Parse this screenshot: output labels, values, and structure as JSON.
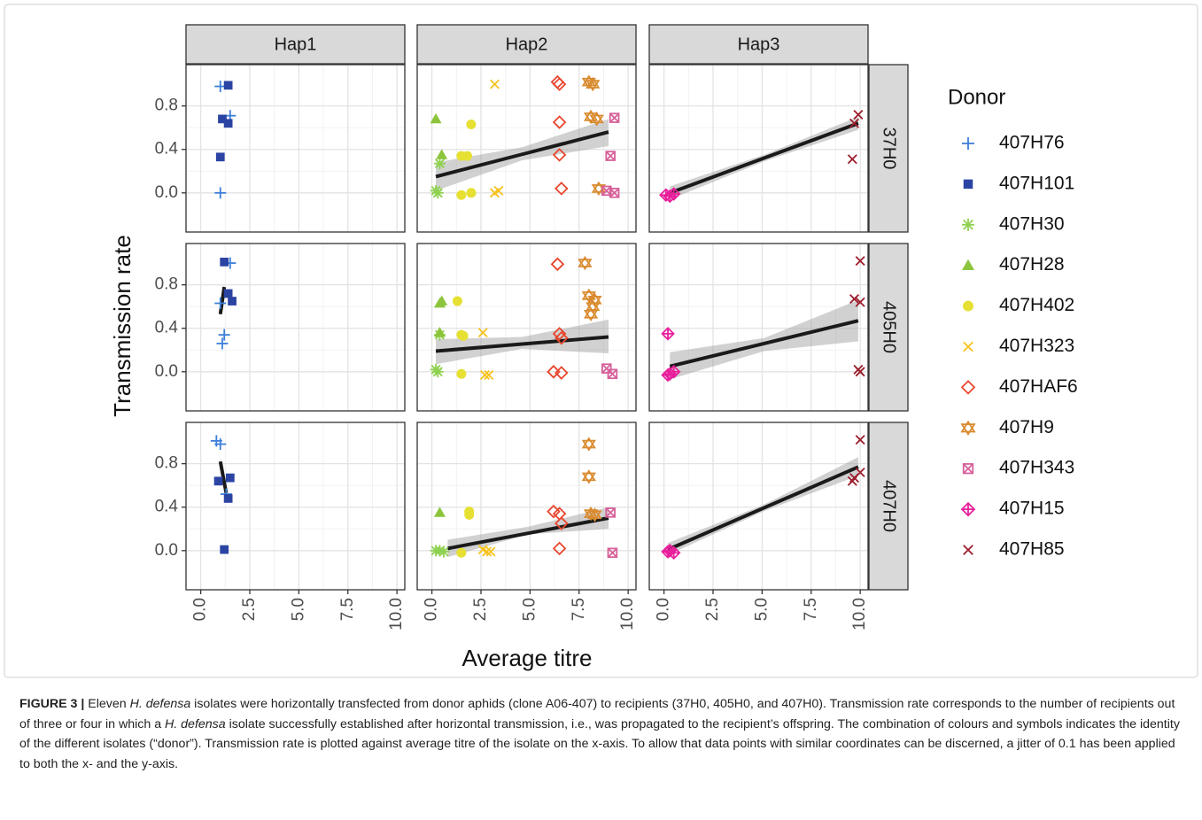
{
  "chart_data": {
    "type": "scatter",
    "xlabel": "Average titre",
    "ylabel": "Transmission rate",
    "columns": [
      "Hap1",
      "Hap2",
      "Hap3"
    ],
    "rows": [
      "37H0",
      "405H0",
      "407H0"
    ],
    "xlim": [
      -0.75,
      10.4
    ],
    "xticks": [
      {
        "value": 0,
        "label": "0.0"
      },
      2.5,
      {
        "value": 5,
        "label": "5.0"
      },
      7.5,
      {
        "value": 10,
        "label": "10.0"
      }
    ],
    "ylim": [
      -0.36,
      1.18
    ],
    "yticks": [
      {
        "value": 0,
        "label": "0.0"
      },
      0.4,
      0.8
    ],
    "grid": true,
    "legend_title": "Donor",
    "series": [
      {
        "name": "407H76",
        "color": "#3d7fd9",
        "shape": "plus",
        "panel": [
          0,
          0,
          0,
          3,
          3,
          3,
          3,
          6,
          6,
          6
        ],
        "x": [
          1.0,
          1.5,
          1.0,
          1.5,
          1.0,
          1.2,
          1.1,
          0.8,
          1.0,
          1.3
        ],
        "y": [
          0.98,
          0.71,
          0.0,
          1.0,
          0.63,
          0.34,
          0.26,
          1.01,
          0.98,
          0.52
        ]
      },
      {
        "name": "407H101",
        "color": "#2b44a3",
        "shape": "square",
        "panel": [
          0,
          0,
          0,
          0,
          3,
          3,
          3,
          6,
          6,
          6,
          6
        ],
        "x": [
          1.4,
          1.1,
          1.4,
          1.0,
          1.2,
          1.4,
          1.6,
          0.9,
          1.5,
          1.4,
          1.2
        ],
        "y": [
          0.99,
          0.68,
          0.64,
          0.33,
          1.01,
          0.72,
          0.65,
          0.64,
          0.67,
          0.48,
          0.01
        ]
      },
      {
        "name": "407H30",
        "color": "#8fd150",
        "shape": "asterisk",
        "panel": [
          1,
          1,
          1,
          4,
          4,
          4,
          7,
          7,
          7
        ],
        "x": [
          0.2,
          0.4,
          0.3,
          0.2,
          0.4,
          0.3,
          0.2,
          0.4,
          0.6
        ],
        "y": [
          0.02,
          0.27,
          0.0,
          0.02,
          0.34,
          0.0,
          0.0,
          0.0,
          -0.01
        ]
      },
      {
        "name": "407H28",
        "color": "#8cc43c",
        "shape": "triangle",
        "panel": [
          1,
          1,
          4,
          4,
          4,
          7
        ],
        "x": [
          0.2,
          0.5,
          0.5,
          0.4,
          0.4,
          0.4
        ],
        "y": [
          0.68,
          0.35,
          0.65,
          0.63,
          0.36,
          0.35
        ]
      },
      {
        "name": "407H402",
        "color": "#e6e033",
        "shape": "circle",
        "panel": [
          1,
          1,
          1,
          1,
          1,
          4,
          4,
          4,
          4,
          7,
          7,
          7
        ],
        "x": [
          1.8,
          1.5,
          2.0,
          1.5,
          2.0,
          1.3,
          1.5,
          1.6,
          1.5,
          1.5,
          1.9,
          1.9
        ],
        "y": [
          0.34,
          0.34,
          0.63,
          -0.02,
          0.0,
          0.65,
          0.34,
          0.33,
          -0.02,
          -0.02,
          0.36,
          0.33
        ]
      },
      {
        "name": "407H323",
        "color": "#f6c21b",
        "shape": "cross",
        "panel": [
          1,
          1,
          1,
          4,
          4,
          4,
          7,
          7,
          7
        ],
        "x": [
          3.2,
          3.4,
          3.2,
          2.6,
          2.7,
          2.9,
          2.6,
          2.8,
          3.0
        ],
        "y": [
          1.0,
          0.02,
          0.0,
          0.36,
          -0.03,
          -0.03,
          0.01,
          -0.01,
          -0.01
        ]
      },
      {
        "name": "407HAF6",
        "color": "#e8462d",
        "shape": "diamond",
        "panel": [
          1,
          1,
          1,
          1,
          1,
          4,
          4,
          4,
          4,
          4,
          7,
          7,
          7,
          7
        ],
        "x": [
          6.4,
          6.5,
          6.5,
          6.5,
          6.6,
          6.4,
          6.5,
          6.6,
          6.2,
          6.6,
          6.2,
          6.5,
          6.6,
          6.5
        ],
        "y": [
          1.02,
          1.0,
          0.65,
          0.35,
          0.04,
          0.99,
          0.35,
          0.31,
          0.0,
          -0.01,
          0.36,
          0.34,
          0.25,
          0.02
        ]
      },
      {
        "name": "407H9",
        "color": "#d98b2f",
        "shape": "star",
        "panel": [
          1,
          1,
          1,
          1,
          1,
          4,
          4,
          4,
          4,
          4,
          7,
          7,
          7,
          7
        ],
        "x": [
          8.0,
          8.2,
          8.1,
          8.4,
          8.5,
          7.8,
          8.0,
          8.3,
          8.1,
          8.2,
          8.0,
          8.0,
          8.1,
          8.3
        ],
        "y": [
          1.02,
          1.0,
          0.7,
          0.68,
          0.04,
          1.0,
          0.7,
          0.66,
          0.53,
          0.6,
          0.98,
          0.68,
          0.34,
          0.33
        ]
      },
      {
        "name": "407H343",
        "color": "#d7609a",
        "shape": "square-cross",
        "panel": [
          1,
          1,
          1,
          1,
          4,
          4,
          7,
          7
        ],
        "x": [
          9.3,
          9.1,
          8.9,
          9.3,
          8.9,
          9.2,
          9.1,
          9.2
        ],
        "y": [
          0.69,
          0.34,
          0.02,
          0.0,
          0.03,
          -0.02,
          0.35,
          -0.02
        ]
      },
      {
        "name": "407H15",
        "color": "#e8209c",
        "shape": "diamond-plus",
        "panel": [
          2,
          2,
          2,
          5,
          5,
          5,
          5,
          8,
          8,
          8
        ],
        "x": [
          0.1,
          0.3,
          0.5,
          0.2,
          0.3,
          0.5,
          0.2,
          0.3,
          0.5,
          0.2
        ],
        "y": [
          -0.02,
          -0.03,
          -0.01,
          0.35,
          -0.02,
          0.0,
          -0.03,
          0.0,
          -0.02,
          -0.01
        ]
      },
      {
        "name": "407H85",
        "color": "#9c1c2b",
        "shape": "cross",
        "panel": [
          2,
          2,
          2,
          5,
          5,
          5,
          5,
          5,
          8,
          8,
          8,
          8
        ],
        "x": [
          9.9,
          9.7,
          9.6,
          10.0,
          9.7,
          10.0,
          9.9,
          10.0,
          10.0,
          10.0,
          9.7,
          9.6
        ],
        "y": [
          0.72,
          0.64,
          0.31,
          1.02,
          0.67,
          0.64,
          0.02,
          0.0,
          1.02,
          0.72,
          0.67,
          0.64
        ]
      }
    ],
    "fits": [
      {
        "panel": 1,
        "x": [
          0.2,
          4.6,
          9.0
        ],
        "y": [
          0.15,
          0.355,
          0.56
        ],
        "lower": [
          0.02,
          0.3,
          0.43
        ],
        "upper": [
          0.28,
          0.42,
          0.68
        ]
      },
      {
        "panel": 2,
        "x": [
          0.3,
          5.1,
          9.9
        ],
        "y": [
          0.0,
          0.32,
          0.64
        ],
        "lower": [
          -0.06,
          0.29,
          0.58
        ],
        "upper": [
          0.06,
          0.35,
          0.7
        ]
      },
      {
        "panel": 3,
        "x": [
          1.0,
          1.1,
          1.2
        ],
        "y": [
          0.53,
          0.655,
          0.78
        ],
        "lower": [
          0.5,
          0.63,
          0.74
        ],
        "upper": [
          0.56,
          0.68,
          0.82
        ]
      },
      {
        "panel": 4,
        "x": [
          0.2,
          4.6,
          9.0
        ],
        "y": [
          0.19,
          0.255,
          0.32
        ],
        "lower": [
          0.07,
          0.21,
          0.17
        ],
        "upper": [
          0.3,
          0.32,
          0.48
        ]
      },
      {
        "panel": 5,
        "x": [
          0.3,
          5.1,
          9.9
        ],
        "y": [
          0.05,
          0.26,
          0.47
        ],
        "lower": [
          -0.07,
          0.19,
          0.28
        ],
        "upper": [
          0.18,
          0.31,
          0.66
        ]
      },
      {
        "panel": 6,
        "x": [
          1.0,
          1.15,
          1.3
        ],
        "y": [
          0.82,
          0.675,
          0.53
        ],
        "lower": [
          0.78,
          0.64,
          0.49
        ],
        "upper": [
          0.86,
          0.71,
          0.57
        ]
      },
      {
        "panel": 7,
        "x": [
          0.8,
          4.9,
          9.0
        ],
        "y": [
          0.02,
          0.16,
          0.3
        ],
        "lower": [
          -0.06,
          0.15,
          0.2
        ],
        "upper": [
          0.1,
          0.22,
          0.4
        ]
      },
      {
        "panel": 8,
        "x": [
          0.2,
          5.05,
          9.9
        ],
        "y": [
          0.01,
          0.39,
          0.77
        ],
        "lower": [
          -0.04,
          0.36,
          0.69
        ],
        "upper": [
          0.07,
          0.42,
          0.86
        ]
      }
    ]
  },
  "caption": [
    {
      "text": "FIGURE 3 |",
      "bold": true
    },
    {
      "text": " Eleven "
    },
    {
      "text": "H. defensa",
      "italic": true
    },
    {
      "text": " isolates were horizontally transfected from donor aphids (clone A06-407) to recipients (37H0, 405H0, and 407H0). Transmission rate corresponds to the number of recipients out of three or four in which a "
    },
    {
      "text": "H. defensa",
      "italic": true
    },
    {
      "text": " isolate successfully established after horizontal transmission, i.e., was propagated to the recipient’s offspring. The combination of colours and symbols indicates the identity of the different isolates (“donor”). Transmission rate is plotted against average titre of the isolate on the x-axis. To allow that data points with similar coordinates can be discerned, a jitter of 0.1 has been applied to both the x- and the y-axis."
    }
  ]
}
